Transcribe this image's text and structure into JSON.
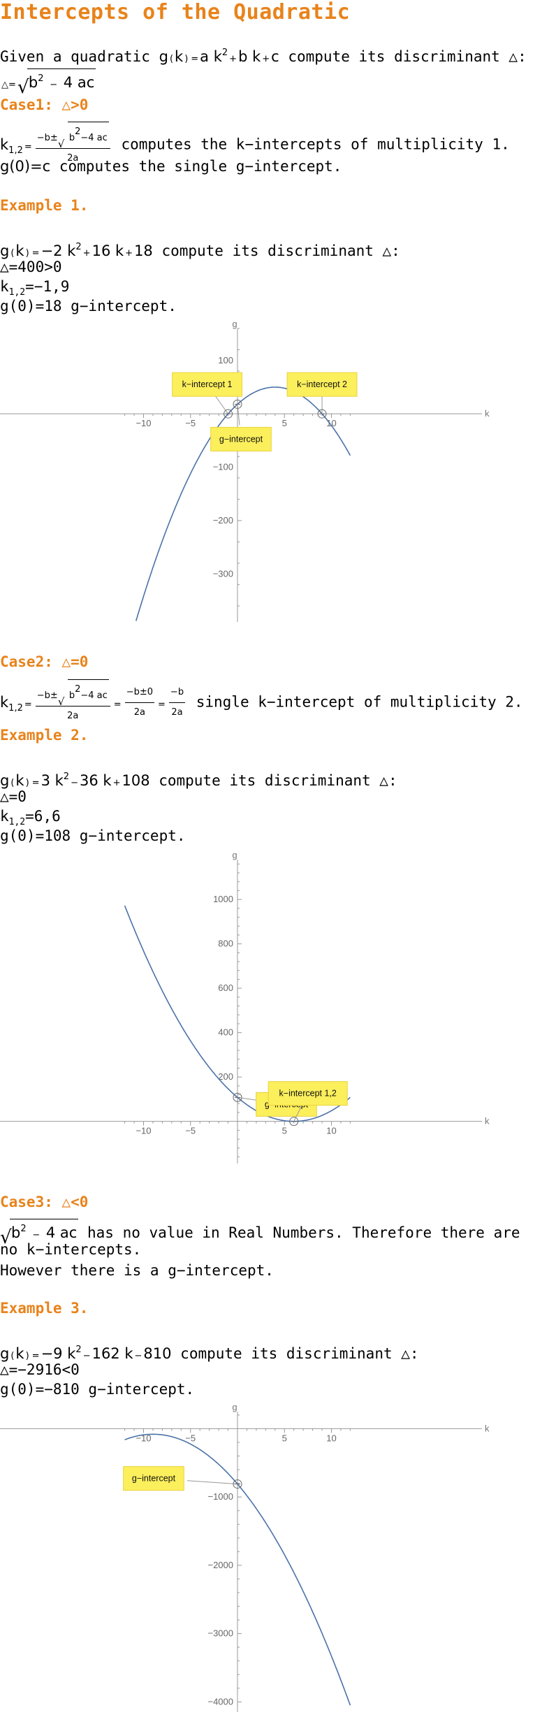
{
  "title": "Intercepts of the Quadratic",
  "intro": {
    "text": "compute its discriminant △:",
    "given": "Given a quadratic",
    "g": "g",
    "k": "k",
    "eq": "=",
    "a": "a",
    "b": "b",
    "c": "c",
    "sq": "2",
    "four": "4",
    "ac": "ac",
    "delta": "△"
  },
  "case1": {
    "heading": "Case1: △>0",
    "roots_text": "computes the k−intercepts of multiplicity 1.",
    "yint_text": "computes the single g−intercept.",
    "yint_expr": "g(0)=c"
  },
  "example1": {
    "heading": "Example 1.",
    "func_text": "compute its discriminant △:",
    "a": "−2",
    "b": "16",
    "c": "18",
    "disc": "△=400>0",
    "roots": "−1,9",
    "yint": "g(0)=18 g−intercept."
  },
  "case2": {
    "heading": "Case2: △=0",
    "text": "single k−intercept of multiplicity 2.",
    "zero": "0"
  },
  "example2": {
    "heading": "Example 2.",
    "func_text": "compute its discriminant △:",
    "a": "3",
    "b": "36",
    "c": "108",
    "disc": "△=0",
    "roots": "6,6",
    "yint": "g(0)=108 g−intercept."
  },
  "case3": {
    "heading": "Case3: △<0",
    "text1": "has no value in Real Numbers. Therefore there are",
    "text2": "no k−intercepts.",
    "text3": "However there is a g−intercept."
  },
  "example3": {
    "heading": "Example 3.",
    "func_text": "compute its discriminant △:",
    "a": "−9",
    "b": "162",
    "c": "810",
    "disc": "△=−2916<0",
    "yint": "g(0)=−810 g−intercept."
  },
  "chart_data": [
    {
      "type": "line",
      "function": "g(k)=-2k^2+16k+18",
      "coefficients": {
        "a": -2,
        "b": 16,
        "c": 18
      },
      "xlabel": "k",
      "ylabel": "g",
      "xlim": [
        -12,
        12
      ],
      "ylim": [
        -390,
        160
      ],
      "x_ticks": [
        -10,
        -5,
        5,
        10
      ],
      "y_ticks": [
        100,
        -100,
        -200,
        -300
      ],
      "points": [
        {
          "label": "k−intercept 1",
          "x": -1,
          "y": 0
        },
        {
          "label": "g−intercept",
          "x": 0,
          "y": 18
        },
        {
          "label": "k−intercept 2",
          "x": 9,
          "y": 0
        }
      ],
      "color": "#4b72a8"
    },
    {
      "type": "line",
      "function": "g(k)=3k^2-36k+108",
      "coefficients": {
        "a": 3,
        "b": -36,
        "c": 108
      },
      "xlabel": "k",
      "ylabel": "g",
      "xlim": [
        -12,
        12
      ],
      "ylim": [
        -190,
        1180
      ],
      "x_ticks": [
        -10,
        -5,
        5,
        10
      ],
      "y_ticks": [
        200,
        400,
        600,
        800,
        1000
      ],
      "points": [
        {
          "label": "g−intercept",
          "x": 0,
          "y": 108
        },
        {
          "label": "k−intercept 1,2",
          "x": 6,
          "y": 0
        }
      ],
      "color": "#4b72a8"
    },
    {
      "type": "line",
      "function": "g(k)=-9k^2-162k-810",
      "coefficients": {
        "a": -9,
        "b": -162,
        "c": -810
      },
      "xlabel": "k",
      "ylabel": "g",
      "xlim": [
        -12,
        12
      ],
      "ylim": [
        -4150,
        250
      ],
      "x_ticks": [
        -10,
        -5,
        5,
        10
      ],
      "y_ticks": [
        -1000,
        -2000,
        -3000,
        -4000
      ],
      "points": [
        {
          "label": "g−intercept",
          "x": 0,
          "y": -810
        }
      ],
      "color": "#4b72a8"
    }
  ]
}
